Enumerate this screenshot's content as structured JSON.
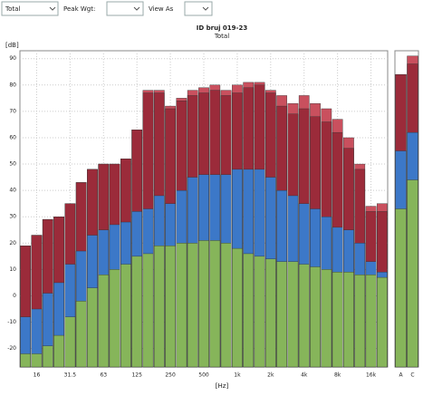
{
  "toolbar": {
    "view": "Total",
    "peak_label": "Peak Wgt:",
    "view_as_label": "View As"
  },
  "chart_data": [
    {
      "type": "bar",
      "title": "ID bruj 019-23",
      "subtitle": "Total",
      "y_label": "[dB]",
      "x_label": "[Hz]",
      "categories": [
        null,
        "16",
        null,
        null,
        "31.5",
        null,
        null,
        "63",
        null,
        null,
        "125",
        null,
        null,
        "250",
        null,
        null,
        "500",
        null,
        null,
        "1k",
        null,
        null,
        "2k",
        null,
        null,
        "4k",
        null,
        null,
        "8k",
        null,
        null,
        "16k",
        null
      ],
      "series": [
        {
          "color": "#c9505e",
          "values": [
            19,
            23,
            29,
            30,
            35,
            43,
            48,
            50,
            50,
            52,
            63,
            78,
            78,
            72,
            75,
            78,
            79,
            80,
            78,
            80,
            81,
            81,
            78,
            76,
            73,
            76,
            73,
            71,
            67,
            60,
            50,
            34,
            35
          ]
        },
        {
          "color": "#9b2b3a",
          "values": [
            19,
            23,
            29,
            30,
            35,
            43,
            48,
            50,
            50,
            52,
            63,
            77,
            77,
            71,
            74,
            76,
            77,
            78,
            76,
            77,
            79,
            80,
            77,
            72,
            69,
            71,
            68,
            66,
            62,
            56,
            48,
            32,
            32
          ]
        },
        {
          "color": "#3c78c8",
          "values": [
            -8,
            -5,
            1,
            5,
            12,
            17,
            23,
            25,
            27,
            28,
            32,
            33,
            38,
            35,
            40,
            45,
            46,
            46,
            46,
            48,
            48,
            48,
            45,
            40,
            38,
            35,
            33,
            30,
            26,
            25,
            20,
            13,
            9
          ]
        },
        {
          "color": "#86b55a",
          "values": [
            -22,
            -22,
            -19,
            -15,
            -8,
            -2,
            3,
            8,
            10,
            12,
            15,
            16,
            19,
            19,
            20,
            20,
            21,
            21,
            20,
            18,
            16,
            15,
            14,
            13,
            13,
            12,
            11,
            10,
            9,
            9,
            8,
            8,
            7
          ]
        }
      ],
      "ylim": [
        -27,
        93
      ],
      "yticks": [
        -20,
        -10,
        0,
        10,
        20,
        30,
        40,
        50,
        60,
        70,
        80,
        90
      ],
      "grid": true
    },
    {
      "type": "bar",
      "categories": [
        "A",
        "C"
      ],
      "series": [
        {
          "color": "#c9505e",
          "values": [
            84,
            91
          ]
        },
        {
          "color": "#9b2b3a",
          "values": [
            84,
            88
          ]
        },
        {
          "color": "#3c78c8",
          "values": [
            55,
            62
          ]
        },
        {
          "color": "#86b55a",
          "values": [
            33,
            44
          ]
        }
      ],
      "ylim": [
        -27,
        93
      ]
    }
  ]
}
